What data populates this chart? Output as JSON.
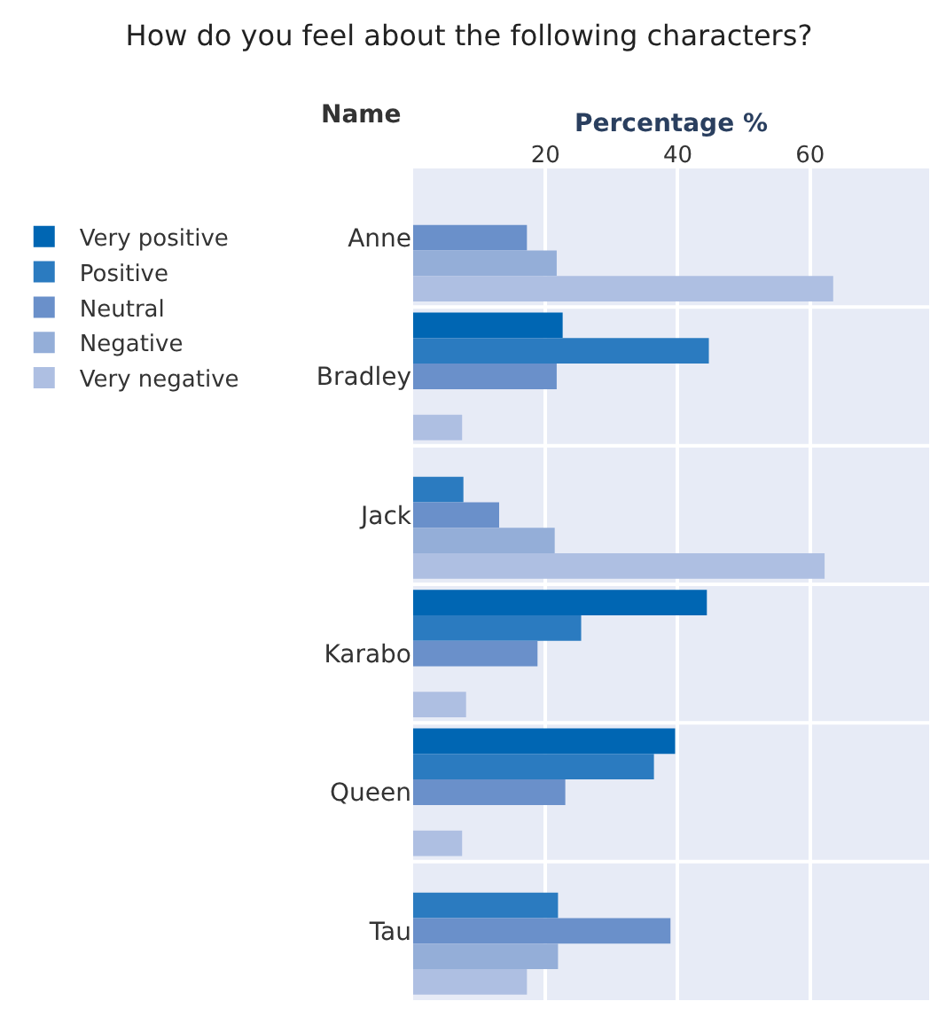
{
  "chart_data": {
    "type": "bar",
    "orientation": "horizontal",
    "title": "How do you feel about the following characters?",
    "xlabel": "Percentage %",
    "ylabel": "Name",
    "categories": [
      "Anne",
      "Bradley",
      "Jack",
      "Karabo",
      "Queen",
      "Tau"
    ],
    "series": [
      {
        "name": "Very positive",
        "color": "#0066b3",
        "values": [
          null,
          22.6,
          null,
          44.4,
          39.6,
          null
        ]
      },
      {
        "name": "Positive",
        "color": "#2b7bc0",
        "values": [
          null,
          44.7,
          7.6,
          25.4,
          36.4,
          21.9
        ]
      },
      {
        "name": "Neutral",
        "color": "#6a90ca",
        "values": [
          17.2,
          21.7,
          13.0,
          18.8,
          23.0,
          38.9
        ]
      },
      {
        "name": "Negative",
        "color": "#94aed8",
        "values": [
          21.7,
          null,
          21.4,
          null,
          null,
          21.9
        ]
      },
      {
        "name": "Very negative",
        "color": "#aebfe2",
        "values": [
          63.5,
          7.4,
          62.2,
          8.0,
          7.4,
          17.2
        ]
      }
    ],
    "xlim": [
      0,
      78
    ],
    "xticks": [
      20,
      40,
      60
    ],
    "grid": "x",
    "legend": "left"
  }
}
